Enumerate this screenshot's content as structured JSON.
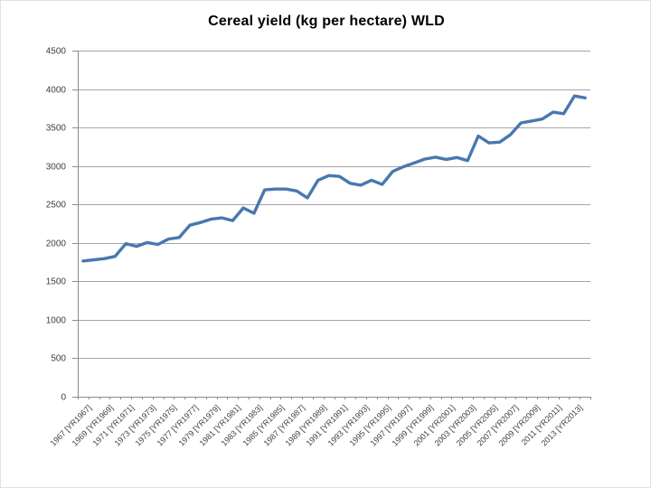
{
  "title": "Cereal yield (kg per hectare) WLD",
  "chart_data": {
    "type": "line",
    "title": "Cereal yield (kg per hectare) WLD",
    "xlabel": "",
    "ylabel": "",
    "ylim": [
      0,
      4500
    ],
    "ytick_step": 500,
    "y_tick_labels": [
      "0",
      "500",
      "1000",
      "1500",
      "2000",
      "2500",
      "3000",
      "3500",
      "4000",
      "4500"
    ],
    "grid": "horizontal",
    "legend_position": "none",
    "x": [
      1967,
      1968,
      1969,
      1970,
      1971,
      1972,
      1973,
      1974,
      1975,
      1976,
      1977,
      1978,
      1979,
      1980,
      1981,
      1982,
      1983,
      1984,
      1985,
      1986,
      1987,
      1988,
      1989,
      1990,
      1991,
      1992,
      1993,
      1994,
      1995,
      1996,
      1997,
      1998,
      1999,
      2000,
      2001,
      2002,
      2003,
      2004,
      2005,
      2006,
      2007,
      2008,
      2009,
      2010,
      2011,
      2012,
      2013,
      2014
    ],
    "x_tick_labels": [
      "1967 [YR1967]",
      "1969 [YR1969]",
      "1971 [YR1971]",
      "1973 [YR1973]",
      "1975 [YR1975]",
      "1977 [YR1977]",
      "1979 [YR1979]",
      "1981 [YR1981]",
      "1983 [YR1983]",
      "1985 [YR1985]",
      "1987 [YR1987]",
      "1989 [YR1989]",
      "1991 [YR1991]",
      "1993 [YR1993]",
      "1995 [YR1995]",
      "1997 [YR1997]",
      "1999 [YR1999]",
      "2001 [YR2001]",
      "2003 [YR2003]",
      "2005 [YR2005]",
      "2007 [YR2007]",
      "2009 [YR2009]",
      "2011 [YR2011]",
      "2013 [YR2013]"
    ],
    "x_tick_label_interval": 2,
    "series": [
      {
        "name": "WLD",
        "values": [
          1765,
          1780,
          1795,
          1825,
          1990,
          1955,
          2005,
          1980,
          2050,
          2070,
          2230,
          2265,
          2310,
          2325,
          2290,
          2455,
          2385,
          2690,
          2700,
          2700,
          2675,
          2585,
          2815,
          2875,
          2865,
          2775,
          2750,
          2815,
          2760,
          2930,
          2990,
          3040,
          3090,
          3115,
          3085,
          3110,
          3070,
          3390,
          3300,
          3310,
          3405,
          3560,
          3585,
          3610,
          3700,
          3680,
          3910,
          3885
        ]
      }
    ],
    "colors": {
      "line": "#4878ae",
      "gridline": "#a6a6a6",
      "axis": "#8c8c8c",
      "tick_text": "#3f3f3f",
      "title_text": "#000000",
      "background": "#ffffff"
    }
  }
}
